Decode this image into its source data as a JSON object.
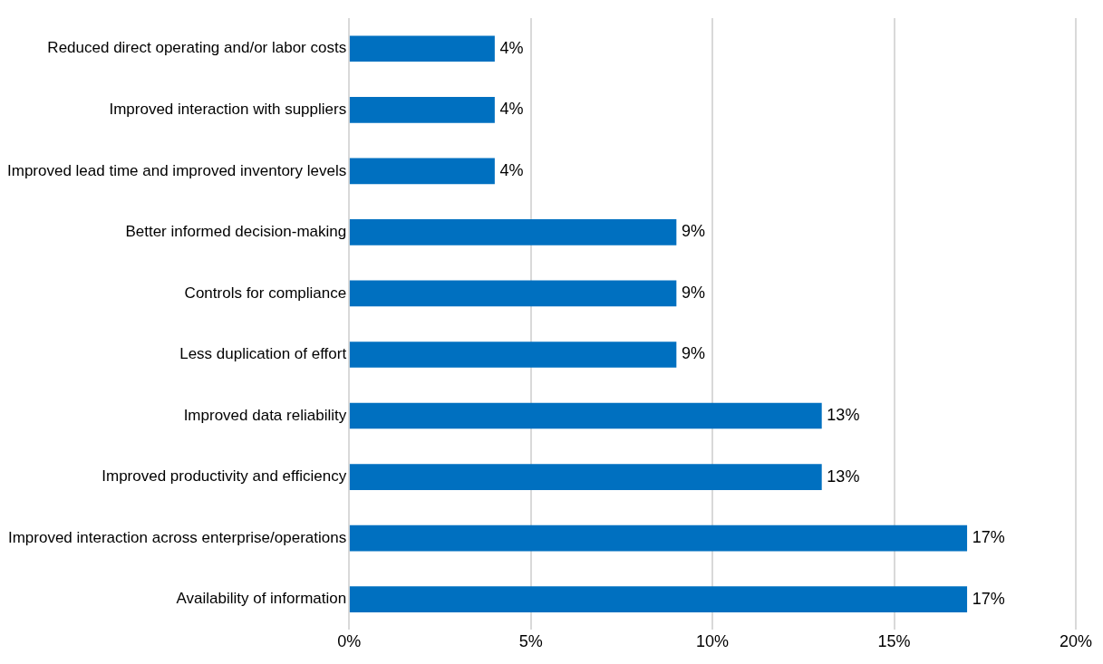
{
  "chart_data": {
    "type": "bar",
    "orientation": "horizontal",
    "categories": [
      "Reduced direct operating and/or labor costs",
      "Improved interaction with suppliers",
      "Improved lead time and improved inventory levels",
      "Better informed decision-making",
      "Controls for compliance",
      "Less duplication of effort",
      "Improved data reliability",
      "Improved productivity and efficiency",
      "Improved interaction across enterprise/operations",
      "Availability of information"
    ],
    "values": [
      4,
      4,
      4,
      9,
      9,
      9,
      13,
      13,
      17,
      17
    ],
    "value_labels": [
      "4%",
      "4%",
      "4%",
      "9%",
      "9%",
      "9%",
      "13%",
      "13%",
      "17%",
      "17%"
    ],
    "color": "#0070c0",
    "xlim": [
      0,
      20
    ],
    "xticks": [
      {
        "value": 0,
        "label": "0%"
      },
      {
        "value": 5,
        "label": "5%"
      },
      {
        "value": 10,
        "label": "10%"
      },
      {
        "value": 15,
        "label": "15%"
      },
      {
        "value": 20,
        "label": "20%"
      }
    ],
    "grid": "x",
    "legend": false
  }
}
